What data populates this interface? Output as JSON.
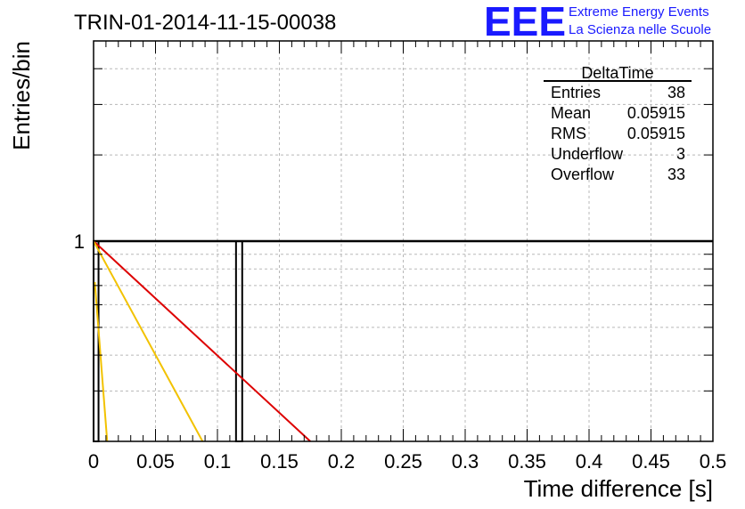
{
  "title": "TRIN-01-2014-11-15-00038",
  "logo": {
    "mark": "EEE",
    "line1": "Extreme Energy Events",
    "line2": "La Scienza nelle Scuole",
    "color": "#1a1aff"
  },
  "stats_box": {
    "name": "DeltaTime",
    "rows": [
      {
        "label": "Entries",
        "value": "38"
      },
      {
        "label": "Mean",
        "value": "0.05915"
      },
      {
        "label": "RMS",
        "value": "0.05915"
      },
      {
        "label": "Underflow",
        "value": "3"
      },
      {
        "label": "Overflow",
        "value": "33"
      }
    ]
  },
  "chart_data": {
    "type": "bar",
    "title": "TRIN-01-2014-11-15-00038",
    "xlabel": "Time difference [s]",
    "ylabel": "Entries/bin",
    "xlim": [
      0,
      0.5
    ],
    "ylim": [
      0.2,
      5
    ],
    "yscale": "log",
    "grid": true,
    "x_ticks": [
      "0",
      "0.05",
      "0.1",
      "0.15",
      "0.2",
      "0.25",
      "0.3",
      "0.35",
      "0.4",
      "0.45",
      "0.5"
    ],
    "y_ticks": [
      "1"
    ],
    "histogram": {
      "color": "#000000",
      "bins": [
        {
          "x0": 0.0,
          "x1": 0.004,
          "value": 1
        },
        {
          "x0": 0.115,
          "x1": 0.12,
          "value": 1
        }
      ]
    },
    "curves": [
      {
        "color": "#dd0000",
        "points": [
          [
            0.0,
            1.0
          ],
          [
            0.175,
            0.2
          ]
        ]
      },
      {
        "color": "#f2c200",
        "points": [
          [
            0.0,
            1.0
          ],
          [
            0.088,
            0.2
          ]
        ]
      },
      {
        "color": "#f2c200",
        "points": [
          [
            0.001,
            0.72
          ],
          [
            0.011,
            0.2
          ]
        ]
      }
    ]
  }
}
